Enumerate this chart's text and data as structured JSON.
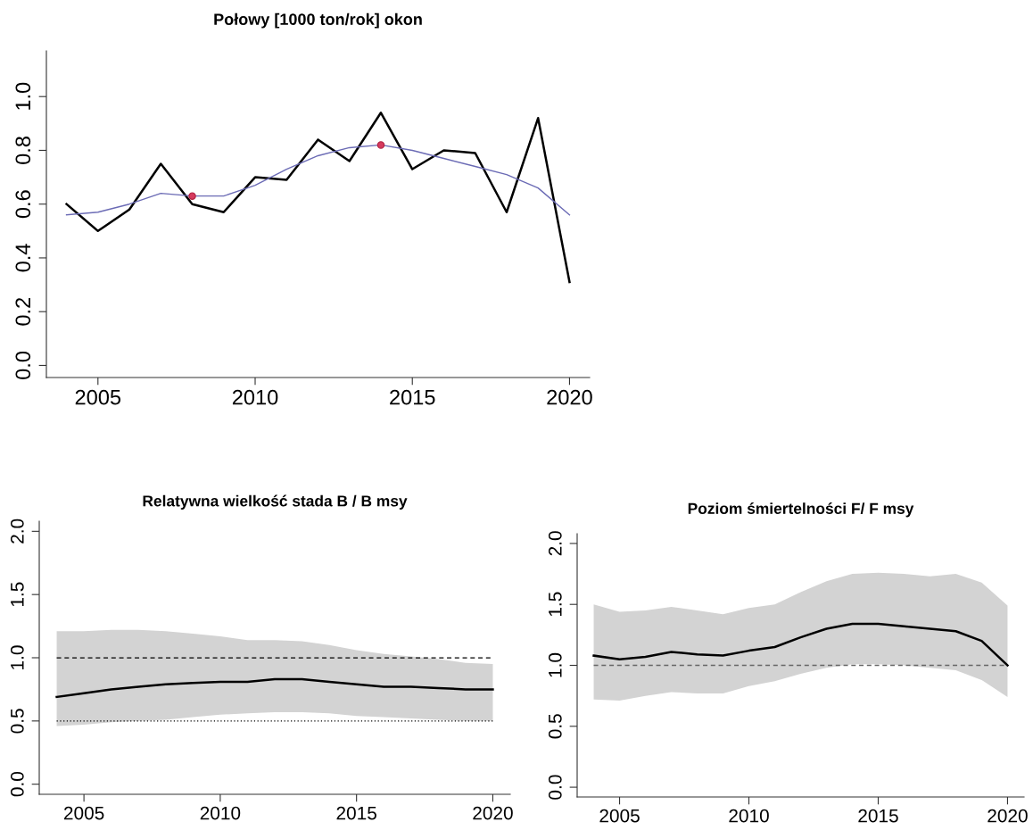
{
  "chart_data": [
    {
      "type": "line",
      "title": "Połowy [1000 ton/rok] okon",
      "x": [
        2004,
        2005,
        2006,
        2007,
        2008,
        2009,
        2010,
        2011,
        2012,
        2013,
        2014,
        2015,
        2016,
        2017,
        2018,
        2019,
        2020
      ],
      "series": [
        {
          "color": "#000000",
          "values": [
            0.6,
            0.5,
            0.58,
            0.75,
            0.6,
            0.57,
            0.7,
            0.69,
            0.84,
            0.76,
            0.94,
            0.73,
            0.8,
            0.79,
            0.57,
            0.92,
            0.31
          ]
        },
        {
          "color": "#6b6bb5",
          "values": [
            0.56,
            0.57,
            0.6,
            0.64,
            0.63,
            0.63,
            0.67,
            0.73,
            0.78,
            0.81,
            0.82,
            0.8,
            0.77,
            0.74,
            0.71,
            0.66,
            0.56
          ]
        },
        {
          "type": "scatter",
          "color": "#d63a5e",
          "marker": "circle",
          "x": [
            2008,
            2014
          ],
          "values": [
            0.63,
            0.82
          ]
        }
      ],
      "xlim": [
        2003.36,
        2020.64
      ],
      "ylim": [
        -0.045,
        1.17
      ],
      "xticks": [
        2005,
        2010,
        2015,
        2020
      ],
      "yticks": [
        {
          "value": 0,
          "label": "0.0"
        },
        0.2,
        0.4,
        0.6,
        0.8,
        {
          "value": 1,
          "label": "1.0"
        }
      ],
      "grid": false
    },
    {
      "type": "line",
      "title": "Relatywna wielkość stada B / B msy",
      "x": [
        2004,
        2005,
        2006,
        2007,
        2008,
        2009,
        2010,
        2011,
        2012,
        2013,
        2014,
        2015,
        2016,
        2017,
        2018,
        2019,
        2020
      ],
      "series": [
        {
          "color": "#000000",
          "values": [
            0.69,
            0.72,
            0.75,
            0.77,
            0.79,
            0.8,
            0.81,
            0.81,
            0.83,
            0.83,
            0.81,
            0.79,
            0.77,
            0.77,
            0.76,
            0.75,
            0.75
          ],
          "lower": [
            0.46,
            0.47,
            0.49,
            0.5,
            0.51,
            0.53,
            0.55,
            0.56,
            0.57,
            0.57,
            0.56,
            0.54,
            0.53,
            0.52,
            0.51,
            0.5,
            0.5
          ],
          "upper": [
            1.21,
            1.21,
            1.22,
            1.22,
            1.21,
            1.19,
            1.17,
            1.14,
            1.14,
            1.13,
            1.1,
            1.06,
            1.03,
            1.01,
            0.99,
            0.96,
            0.95
          ]
        }
      ],
      "ref_lines": [
        {
          "axis": "y",
          "value": 1,
          "color": "#000000",
          "line_style": "dashed"
        },
        {
          "axis": "y",
          "value": 0.5,
          "color": "#000000",
          "line_style": "dotted"
        }
      ],
      "xlim": [
        2003.36,
        2020.64
      ],
      "ylim": [
        -0.08,
        2.08
      ],
      "xticks": [
        2005,
        2010,
        2015,
        2020
      ],
      "yticks": [
        {
          "value": 0,
          "label": "0.0"
        },
        0.5,
        {
          "value": 1,
          "label": "1.0"
        },
        1.5,
        {
          "value": 2,
          "label": "2.0"
        }
      ],
      "grid": false
    },
    {
      "type": "line",
      "title": "Poziom śmiertelności F/ F msy",
      "x": [
        2004,
        2005,
        2006,
        2007,
        2008,
        2009,
        2010,
        2011,
        2012,
        2013,
        2014,
        2015,
        2016,
        2017,
        2018,
        2019,
        2020
      ],
      "series": [
        {
          "color": "#000000",
          "values": [
            1.08,
            1.05,
            1.07,
            1.11,
            1.09,
            1.08,
            1.12,
            1.15,
            1.23,
            1.3,
            1.34,
            1.34,
            1.32,
            1.3,
            1.28,
            1.2,
            1.0
          ],
          "lower": [
            0.72,
            0.71,
            0.75,
            0.78,
            0.77,
            0.77,
            0.83,
            0.87,
            0.93,
            0.98,
            1.01,
            1.01,
            1.0,
            0.98,
            0.96,
            0.88,
            0.74
          ],
          "upper": [
            1.5,
            1.44,
            1.45,
            1.48,
            1.45,
            1.42,
            1.47,
            1.5,
            1.6,
            1.69,
            1.75,
            1.76,
            1.75,
            1.73,
            1.75,
            1.68,
            1.49
          ]
        }
      ],
      "ref_lines": [
        {
          "axis": "y",
          "value": 1,
          "color": "#666666",
          "line_style": "dashed"
        }
      ],
      "xlim": [
        2003.36,
        2020.64
      ],
      "ylim": [
        -0.08,
        2.08
      ],
      "xticks": [
        2005,
        2010,
        2015,
        2020
      ],
      "yticks": [
        {
          "value": 0,
          "label": "0.0"
        },
        0.5,
        {
          "value": 1,
          "label": "1.0"
        },
        1.5,
        {
          "value": 2,
          "label": "2.0"
        }
      ],
      "grid": false
    }
  ]
}
